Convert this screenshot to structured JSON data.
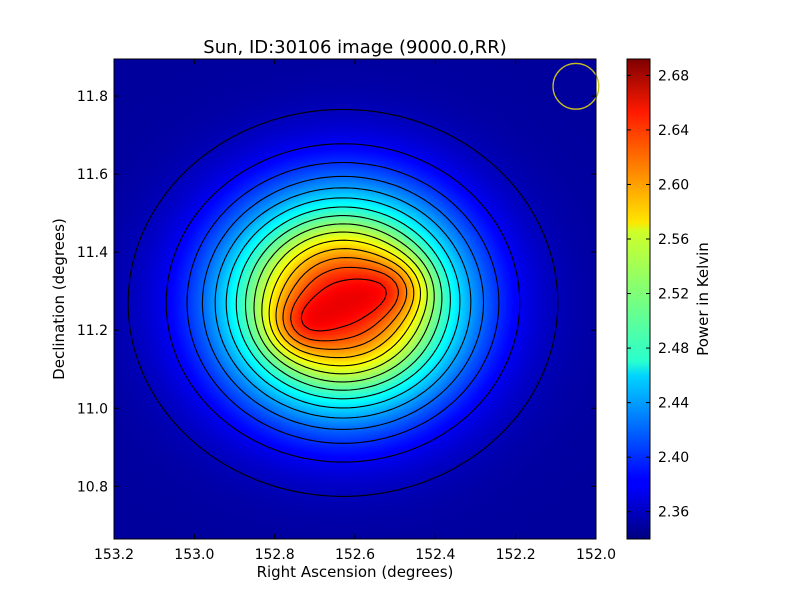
{
  "chart_data": {
    "type": "heatmap",
    "title": "Sun, ID:30106 image (9000.0,RR)",
    "xlabel": "Right Ascension (degrees)",
    "ylabel": "Declination (degrees)",
    "xlim": [
      153.2,
      152.0
    ],
    "ylim": [
      10.665,
      11.895
    ],
    "x_ticks": [
      "153.2",
      "153.0",
      "152.8",
      "152.6",
      "152.4",
      "152.2",
      "152.0"
    ],
    "y_ticks": [
      "10.8",
      "11.0",
      "11.2",
      "11.4",
      "11.6",
      "11.8"
    ],
    "colorbar": {
      "label": "Power in Kelvin",
      "range": [
        2.34,
        2.692
      ],
      "ticks": [
        "2.36",
        "2.40",
        "2.44",
        "2.48",
        "2.52",
        "2.56",
        "2.60",
        "2.64",
        "2.68"
      ],
      "colormap": "jet"
    },
    "source": {
      "background": 2.35,
      "components": [
        {
          "ra": 152.63,
          "dec": 11.27,
          "sigma_ra": 0.205,
          "sigma_dec": 0.19,
          "amplitude": 0.3
        },
        {
          "ra": 152.74,
          "dec": 11.21,
          "sigma_ra": 0.055,
          "sigma_dec": 0.05,
          "amplitude": 0.035
        },
        {
          "ra": 152.5,
          "dec": 11.31,
          "sigma_ra": 0.06,
          "sigma_dec": 0.05,
          "amplitude": 0.035
        }
      ]
    },
    "contour_levels": [
      2.36,
      2.38,
      2.4,
      2.42,
      2.44,
      2.46,
      2.48,
      2.5,
      2.52,
      2.54,
      2.56,
      2.58,
      2.6,
      2.62,
      2.64,
      2.66,
      2.68
    ],
    "beam": {
      "ra": 152.05,
      "dec": 11.825,
      "radius": 0.057,
      "color": "#c8c020"
    }
  }
}
